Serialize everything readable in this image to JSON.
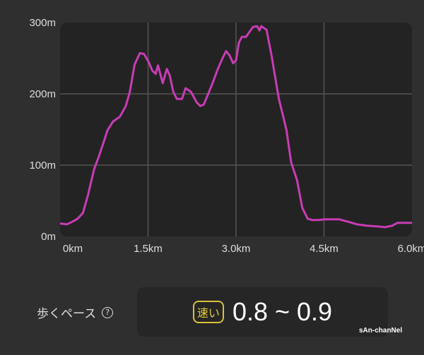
{
  "chart_data": {
    "type": "line",
    "title": "",
    "xlabel": "",
    "ylabel": "",
    "xlim": [
      0,
      6.0
    ],
    "ylim": [
      0,
      300
    ],
    "x_ticks": [
      "0km",
      "1.5km",
      "3.0km",
      "4.5km",
      "6.0km"
    ],
    "y_ticks": [
      "0m",
      "100m",
      "200m",
      "300m"
    ],
    "grid": true,
    "line_color": "#c83cb4",
    "x": [
      0,
      0.12,
      0.24,
      0.3,
      0.39,
      0.48,
      0.58,
      0.66,
      0.73,
      0.81,
      0.9,
      1.02,
      1.12,
      1.19,
      1.27,
      1.36,
      1.43,
      1.51,
      1.57,
      1.63,
      1.67,
      1.75,
      1.82,
      1.87,
      1.93,
      1.99,
      2.08,
      2.14,
      2.23,
      2.33,
      2.39,
      2.45,
      2.49,
      2.59,
      2.69,
      2.77,
      2.83,
      2.89,
      2.95,
      3.0,
      3.05,
      3.1,
      3.17,
      3.23,
      3.29,
      3.36,
      3.4,
      3.43,
      3.52,
      3.61,
      3.73,
      3.82,
      3.86,
      3.94,
      4.04,
      4.13,
      4.22,
      4.3,
      4.4,
      4.52,
      4.76,
      4.94,
      5.06,
      5.24,
      5.42,
      5.54,
      5.66,
      5.75,
      5.9,
      6.0
    ],
    "y": [
      18,
      17,
      22,
      25,
      33,
      59,
      94,
      112,
      129,
      149,
      161,
      168,
      183,
      203,
      241,
      257,
      256,
      245,
      233,
      228,
      240,
      215,
      235,
      226,
      203,
      193,
      193,
      208,
      203,
      188,
      183,
      185,
      193,
      213,
      235,
      250,
      260,
      254,
      243,
      247,
      272,
      280,
      280,
      287,
      294,
      295,
      289,
      295,
      290,
      252,
      193,
      163,
      149,
      104,
      79,
      40,
      25,
      23,
      23,
      24,
      24,
      20,
      17,
      15,
      14,
      13,
      15,
      19,
      19,
      19
    ]
  },
  "pace": {
    "label": "歩くペース",
    "help_icon": "question-circle-icon",
    "help_glyph": "?",
    "badge": "速い",
    "value": "0.8 ~ 0.9",
    "badge_color": "#e4cc3e"
  },
  "watermark": "sAn-chanNel"
}
